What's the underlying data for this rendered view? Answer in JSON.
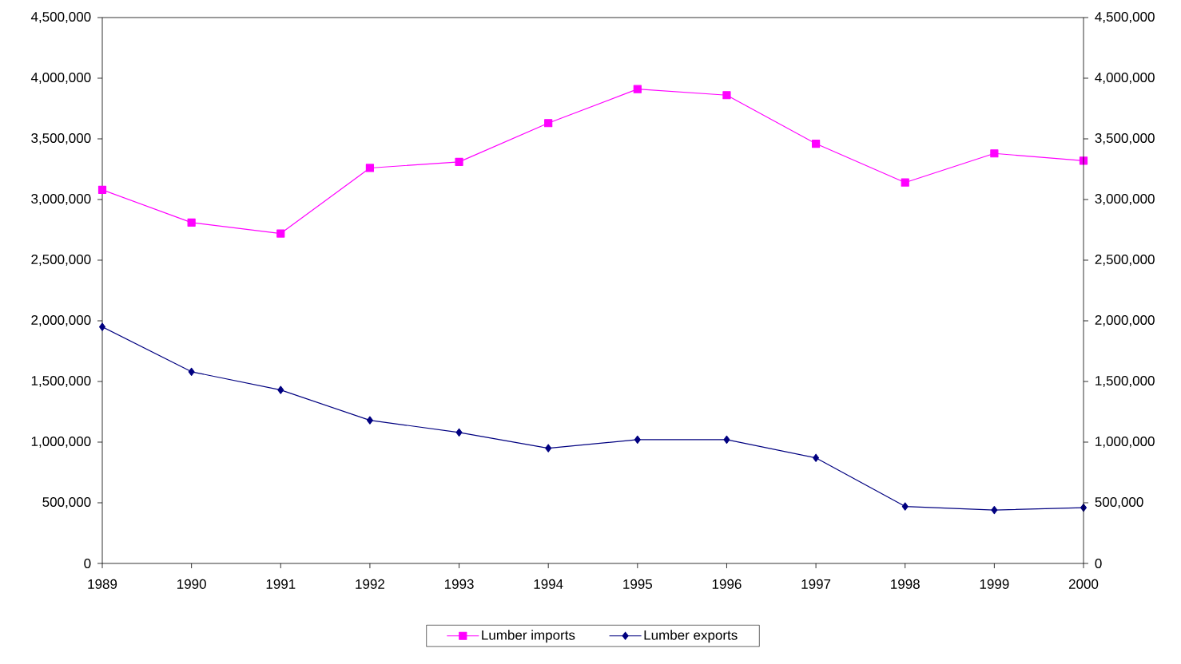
{
  "chart_data": {
    "type": "line",
    "x": [
      1989,
      1990,
      1991,
      1992,
      1993,
      1994,
      1995,
      1996,
      1997,
      1998,
      1999,
      2000
    ],
    "xlim": [
      1989,
      2000
    ],
    "xticks": [
      1989,
      1990,
      1991,
      1992,
      1993,
      1994,
      1995,
      1996,
      1997,
      1998,
      1999,
      2000
    ],
    "ylim": [
      0,
      4500000
    ],
    "yticks": [
      0,
      {
        "value": 500000,
        "label": "500,000"
      },
      {
        "value": 1000000,
        "label": "1,000,000"
      },
      {
        "value": 1500000,
        "label": "1,500,000"
      },
      {
        "value": 2000000,
        "label": "2,000,000"
      },
      {
        "value": 2500000,
        "label": "2,500,000"
      },
      {
        "value": 3000000,
        "label": "3,000,000"
      },
      {
        "value": 3500000,
        "label": "3,500,000"
      },
      {
        "value": 4000000,
        "label": "4,000,000"
      },
      {
        "value": 4500000,
        "label": "4,500,000"
      }
    ],
    "y2lim": [
      0,
      4500000
    ],
    "y2ticks": [
      0,
      {
        "value": 500000,
        "label": "500,000"
      },
      {
        "value": 1000000,
        "label": "1,000,000"
      },
      {
        "value": 1500000,
        "label": "1,500,000"
      },
      {
        "value": 2000000,
        "label": "2,000,000"
      },
      {
        "value": 2500000,
        "label": "2,500,000"
      },
      {
        "value": 3000000,
        "label": "3,000,000"
      },
      {
        "value": 3500000,
        "label": "3,500,000"
      },
      {
        "value": 4000000,
        "label": "4,000,000"
      },
      {
        "value": 4500000,
        "label": "4,500,000"
      }
    ],
    "series": [
      {
        "name": "Lumber imports",
        "color": "#ff00ff",
        "marker": "square",
        "values": [
          3080000,
          2810000,
          2720000,
          3260000,
          3310000,
          3630000,
          3910000,
          3860000,
          3460000,
          3140000,
          3380000,
          3320000
        ]
      },
      {
        "name": "Lumber exports",
        "color": "#000080",
        "marker": "diamond",
        "values": [
          1950000,
          1580000,
          1430000,
          1180000,
          1080000,
          950000,
          1020000,
          1020000,
          870000,
          470000,
          440000,
          460000
        ]
      }
    ],
    "line_style": "solid",
    "legend": "bottom",
    "grid": false
  }
}
